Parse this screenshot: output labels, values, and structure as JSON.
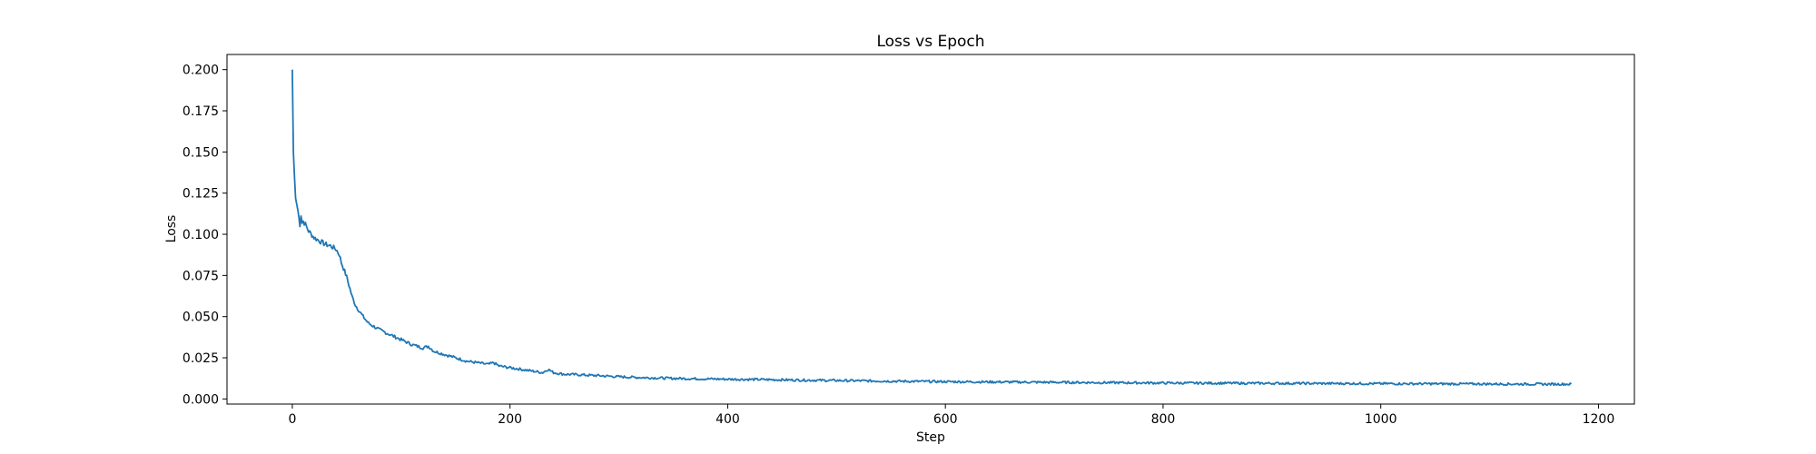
{
  "chart_data": {
    "type": "line",
    "title": "Loss vs Epoch",
    "xlabel": "Step",
    "ylabel": "Loss",
    "xlim": [
      -60,
      1233
    ],
    "ylim": [
      -0.0031,
      0.2092
    ],
    "xticks": [
      0,
      200,
      400,
      600,
      800,
      1000,
      1200
    ],
    "xtick_labels": [
      "0",
      "200",
      "400",
      "600",
      "800",
      "1000",
      "1200"
    ],
    "yticks": [
      0.0,
      0.025,
      0.05,
      0.075,
      0.1,
      0.125,
      0.15,
      0.175,
      0.2
    ],
    "ytick_labels": [
      "0.000",
      "0.025",
      "0.050",
      "0.075",
      "0.100",
      "0.125",
      "0.150",
      "0.175",
      "0.200"
    ],
    "grid": false,
    "series": [
      {
        "color": "#1f77b4",
        "x": [
          0,
          1,
          2,
          3,
          5,
          7,
          8,
          9,
          10,
          12,
          15,
          20,
          25,
          30,
          35,
          40,
          43,
          45,
          50,
          55,
          58,
          60,
          65,
          70,
          80,
          90,
          100,
          110,
          120,
          125,
          130,
          140,
          150,
          160,
          170,
          180,
          185,
          190,
          200,
          210,
          220,
          230,
          235,
          240,
          250,
          260,
          280,
          300,
          320,
          350,
          380,
          400,
          430,
          460,
          500,
          550,
          600,
          650,
          700,
          750,
          800,
          850,
          900,
          950,
          1000,
          1050,
          1100,
          1150,
          1175
        ],
        "y": [
          0.2,
          0.15,
          0.135,
          0.122,
          0.115,
          0.106,
          0.112,
          0.107,
          0.108,
          0.106,
          0.102,
          0.098,
          0.096,
          0.094,
          0.093,
          0.091,
          0.088,
          0.083,
          0.074,
          0.062,
          0.057,
          0.055,
          0.05,
          0.046,
          0.042,
          0.039,
          0.036,
          0.033,
          0.031,
          0.032,
          0.029,
          0.027,
          0.025,
          0.023,
          0.022,
          0.021,
          0.022,
          0.02,
          0.019,
          0.018,
          0.017,
          0.016,
          0.018,
          0.016,
          0.015,
          0.0148,
          0.0142,
          0.0135,
          0.013,
          0.0125,
          0.0122,
          0.012,
          0.0118,
          0.0115,
          0.0112,
          0.0108,
          0.0105,
          0.0103,
          0.0101,
          0.0099,
          0.0097,
          0.0096,
          0.0095,
          0.0094,
          0.0093,
          0.0092,
          0.0091,
          0.009,
          0.009
        ]
      }
    ]
  }
}
